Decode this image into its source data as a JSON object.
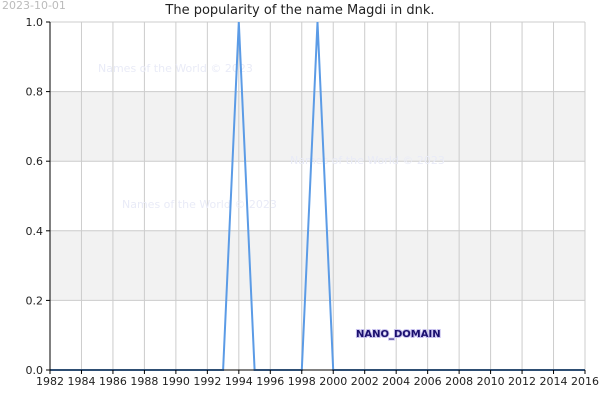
{
  "corner_date": "2023-10-01",
  "watermark_text": "Names of the World © 2023",
  "nano_label": "NANO_DOMAIN",
  "colors": {
    "line": "#5b9be6",
    "band": "#f2f2f2",
    "grid": "#cccccc",
    "axis": "#000000"
  },
  "chart_data": {
    "type": "line",
    "title": "The popularity of the name Magdi in dnk.",
    "xlabel": "",
    "ylabel": "",
    "xlim": [
      1982,
      2016
    ],
    "ylim": [
      0,
      1
    ],
    "x_ticks": [
      1982,
      1984,
      1986,
      1988,
      1990,
      1992,
      1994,
      1996,
      1998,
      2000,
      2002,
      2004,
      2006,
      2008,
      2010,
      2012,
      2014,
      2016
    ],
    "y_ticks": [
      0.0,
      0.2,
      0.4,
      0.6,
      0.8,
      1.0
    ],
    "y_tick_labels": [
      "0.0",
      "0.2",
      "0.4",
      "0.6",
      "0.8",
      "1.0"
    ],
    "bands": [
      [
        0.2,
        0.4
      ],
      [
        0.6,
        0.8
      ]
    ],
    "grid": true,
    "legend": "none",
    "series": [
      {
        "x": [
          1982,
          1993,
          1994,
          1995,
          1998,
          1999,
          2000,
          2016
        ],
        "y": [
          0,
          0,
          1,
          0,
          0,
          1,
          0,
          0
        ]
      }
    ]
  }
}
